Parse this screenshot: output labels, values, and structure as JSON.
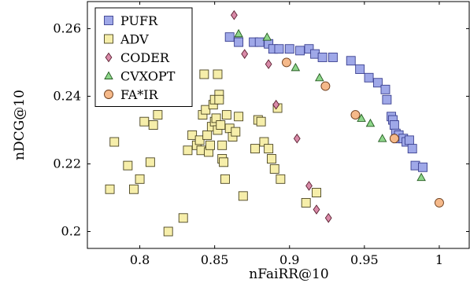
{
  "chart_data": {
    "type": "scatter",
    "title": "",
    "xlabel": "nFaiRR@10",
    "ylabel": "nDCG@10",
    "xlim": [
      0.765,
      1.02
    ],
    "ylim": [
      0.195,
      0.268
    ],
    "xticks": [
      0.8,
      0.85,
      0.9,
      0.95,
      1.0
    ],
    "xtick_labels": [
      "0.8",
      "0.85",
      "0.9",
      "0.95",
      "1"
    ],
    "yticks": [
      0.2,
      0.22,
      0.24,
      0.26
    ],
    "ytick_labels": [
      "0.2",
      "0.22",
      "0.24",
      "0.26"
    ],
    "grid": false,
    "legend_position": "top-left",
    "series": [
      {
        "name": "PUFR",
        "marker": "square",
        "fill": "#9fa8e8",
        "stroke": "#3a3f8f",
        "points": [
          [
            0.86,
            0.2575
          ],
          [
            0.866,
            0.256
          ],
          [
            0.876,
            0.256
          ],
          [
            0.88,
            0.256
          ],
          [
            0.886,
            0.2555
          ],
          [
            0.889,
            0.254
          ],
          [
            0.893,
            0.254
          ],
          [
            0.9,
            0.254
          ],
          [
            0.907,
            0.2535
          ],
          [
            0.913,
            0.254
          ],
          [
            0.917,
            0.2525
          ],
          [
            0.922,
            0.2515
          ],
          [
            0.929,
            0.2515
          ],
          [
            0.941,
            0.2505
          ],
          [
            0.947,
            0.248
          ],
          [
            0.953,
            0.2455
          ],
          [
            0.959,
            0.244
          ],
          [
            0.964,
            0.242
          ],
          [
            0.965,
            0.239
          ],
          [
            0.968,
            0.234
          ],
          [
            0.969,
            0.233
          ],
          [
            0.97,
            0.2315
          ],
          [
            0.971,
            0.229
          ],
          [
            0.972,
            0.2275
          ],
          [
            0.973,
            0.2285
          ],
          [
            0.976,
            0.2275
          ],
          [
            0.978,
            0.2265
          ],
          [
            0.98,
            0.227
          ],
          [
            0.982,
            0.2245
          ],
          [
            0.984,
            0.2195
          ],
          [
            0.989,
            0.219
          ]
        ]
      },
      {
        "name": "ADV",
        "marker": "square",
        "fill": "#f6eeaa",
        "stroke": "#4a4420",
        "points": [
          [
            0.78,
            0.2125
          ],
          [
            0.783,
            0.2265
          ],
          [
            0.792,
            0.2195
          ],
          [
            0.796,
            0.2125
          ],
          [
            0.8,
            0.2155
          ],
          [
            0.803,
            0.2325
          ],
          [
            0.807,
            0.2205
          ],
          [
            0.809,
            0.2315
          ],
          [
            0.812,
            0.2345
          ],
          [
            0.819,
            0.2
          ],
          [
            0.829,
            0.204
          ],
          [
            0.832,
            0.224
          ],
          [
            0.835,
            0.2285
          ],
          [
            0.838,
            0.2255
          ],
          [
            0.84,
            0.227
          ],
          [
            0.841,
            0.224
          ],
          [
            0.842,
            0.2345
          ],
          [
            0.843,
            0.2465
          ],
          [
            0.844,
            0.236
          ],
          [
            0.845,
            0.2285
          ],
          [
            0.846,
            0.2235
          ],
          [
            0.847,
            0.2255
          ],
          [
            0.848,
            0.231
          ],
          [
            0.849,
            0.2375
          ],
          [
            0.85,
            0.239
          ],
          [
            0.85,
            0.2325
          ],
          [
            0.851,
            0.2335
          ],
          [
            0.852,
            0.23
          ],
          [
            0.852,
            0.2465
          ],
          [
            0.853,
            0.2405
          ],
          [
            0.853,
            0.239
          ],
          [
            0.854,
            0.2315
          ],
          [
            0.855,
            0.2255
          ],
          [
            0.855,
            0.2215
          ],
          [
            0.856,
            0.2205
          ],
          [
            0.857,
            0.2155
          ],
          [
            0.858,
            0.2345
          ],
          [
            0.86,
            0.2305
          ],
          [
            0.862,
            0.228
          ],
          [
            0.864,
            0.2295
          ],
          [
            0.866,
            0.234
          ],
          [
            0.869,
            0.2105
          ],
          [
            0.877,
            0.2245
          ],
          [
            0.879,
            0.233
          ],
          [
            0.881,
            0.2325
          ],
          [
            0.883,
            0.2265
          ],
          [
            0.886,
            0.2245
          ],
          [
            0.888,
            0.2215
          ],
          [
            0.89,
            0.2185
          ],
          [
            0.892,
            0.2365
          ],
          [
            0.894,
            0.2155
          ],
          [
            0.911,
            0.2085
          ],
          [
            0.918,
            0.2115
          ]
        ]
      },
      {
        "name": "CODER",
        "marker": "diamond",
        "fill": "#d98aa8",
        "stroke": "#5a2030",
        "points": [
          [
            0.863,
            0.264
          ],
          [
            0.87,
            0.2525
          ],
          [
            0.886,
            0.2495
          ],
          [
            0.891,
            0.2375
          ],
          [
            0.905,
            0.2275
          ],
          [
            0.913,
            0.2135
          ],
          [
            0.918,
            0.2065
          ],
          [
            0.926,
            0.204
          ]
        ]
      },
      {
        "name": "CVXOPT",
        "marker": "triangle",
        "fill": "#8ed68a",
        "stroke": "#245a20",
        "points": [
          [
            0.866,
            0.2585
          ],
          [
            0.885,
            0.2575
          ],
          [
            0.904,
            0.2485
          ],
          [
            0.92,
            0.2455
          ],
          [
            0.948,
            0.2335
          ],
          [
            0.954,
            0.232
          ],
          [
            0.962,
            0.2275
          ],
          [
            0.988,
            0.216
          ]
        ]
      },
      {
        "name": "FA*IR",
        "marker": "circle",
        "fill": "#f5b98a",
        "stroke": "#6a3a18",
        "points": [
          [
            0.898,
            0.25
          ],
          [
            0.924,
            0.243
          ],
          [
            0.944,
            0.2345
          ],
          [
            0.97,
            0.2275
          ],
          [
            1.0,
            0.2085
          ]
        ]
      }
    ]
  }
}
